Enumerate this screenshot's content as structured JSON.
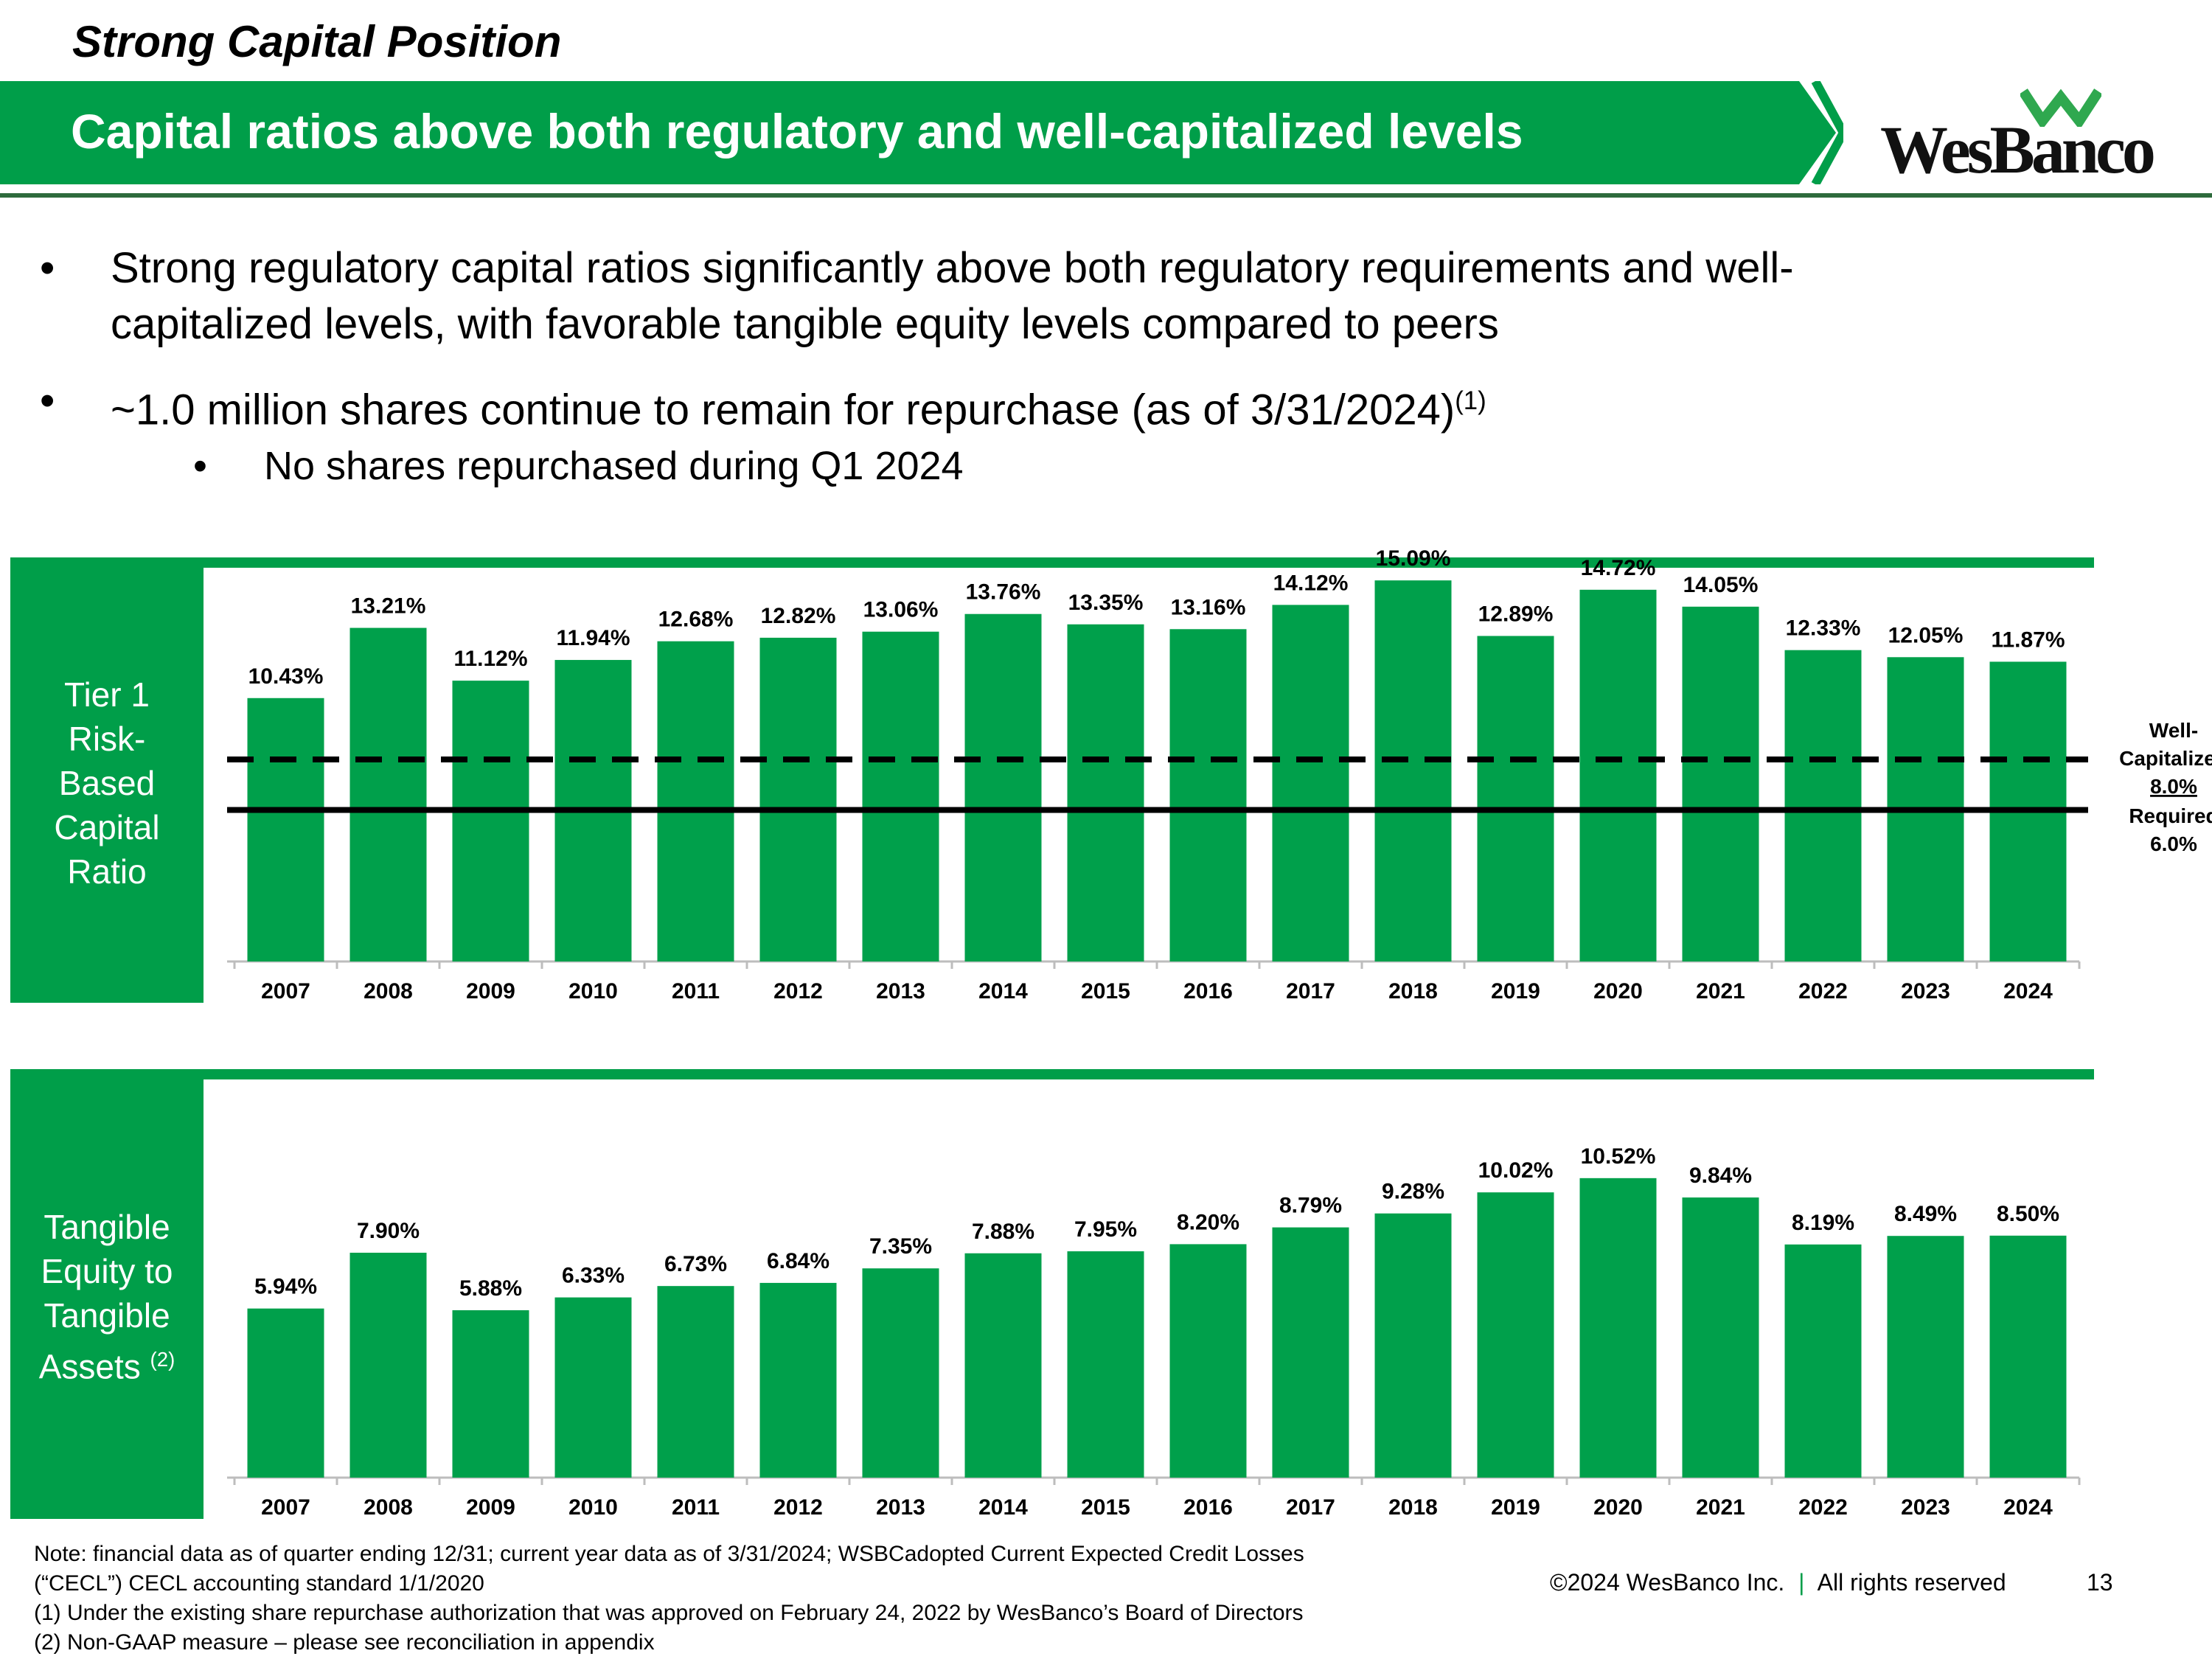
{
  "page": {
    "section_title": "Strong Capital Position",
    "banner_title": "Capital ratios above both regulatory and well-capitalized levels",
    "logo_text": "WesBanco",
    "colors": {
      "brand_green": "#009e49",
      "bar_green": "#00a04b",
      "dark_green": "#2e6b3c"
    }
  },
  "bullets": {
    "b1_line1": "Strong regulatory capital ratios significantly above both regulatory requirements and well-",
    "b1_line2": "capitalized levels, with favorable tangible equity levels compared to peers",
    "b2_text": "~1.0 million shares continue to remain for repurchase (as of 3/31/2024)",
    "b2_sup": "(1)",
    "b2_sub": "No shares repurchased during Q1 2024",
    "bullet_char": "•"
  },
  "chart1_label": {
    "l1": "Tier 1",
    "l2": "Risk-",
    "l3": "Based",
    "l4": "Capital",
    "l5": "Ratio"
  },
  "chart2_label": {
    "l1": "Tangible",
    "l2": "Equity to",
    "l3": "Tangible",
    "l4": "Assets",
    "sup": "(2)"
  },
  "chart_data": [
    {
      "type": "bar",
      "title": "Tier 1 Risk-Based Capital Ratio",
      "categories": [
        "2007",
        "2008",
        "2009",
        "2010",
        "2011",
        "2012",
        "2013",
        "2014",
        "2015",
        "2016",
        "2017",
        "2018",
        "2019",
        "2020",
        "2021",
        "2022",
        "2023",
        "2024"
      ],
      "values": [
        10.43,
        13.21,
        11.12,
        11.94,
        12.68,
        12.82,
        13.06,
        13.76,
        13.35,
        13.16,
        14.12,
        15.09,
        12.89,
        14.72,
        14.05,
        12.33,
        12.05,
        11.87
      ],
      "labels": [
        "10.43%",
        "13.21%",
        "11.12%",
        "11.94%",
        "12.68%",
        "12.82%",
        "13.06%",
        "13.76%",
        "13.35%",
        "13.16%",
        "14.12%",
        "15.09%",
        "12.89%",
        "14.72%",
        "14.05%",
        "12.33%",
        "12.05%",
        "11.87%"
      ],
      "ylim": [
        0,
        16
      ],
      "reference_lines": [
        {
          "name": "Well-Capitalized",
          "value": 8.0,
          "style": "dashed",
          "label_line1": "Well-",
          "label_line2": "Capitalized",
          "value_label": "8.0%"
        },
        {
          "name": "Required",
          "value": 6.0,
          "style": "solid",
          "label_line1": "Required",
          "value_label": "6.0%"
        }
      ]
    },
    {
      "type": "bar",
      "title": "Tangible Equity to Tangible Assets (2)",
      "categories": [
        "2007",
        "2008",
        "2009",
        "2010",
        "2011",
        "2012",
        "2013",
        "2014",
        "2015",
        "2016",
        "2017",
        "2018",
        "2019",
        "2020",
        "2021",
        "2022",
        "2023",
        "2024"
      ],
      "values": [
        5.94,
        7.9,
        5.88,
        6.33,
        6.73,
        6.84,
        7.35,
        7.88,
        7.95,
        8.2,
        8.79,
        9.28,
        10.02,
        10.52,
        9.84,
        8.19,
        8.49,
        8.5
      ],
      "labels": [
        "5.94%",
        "7.90%",
        "5.88%",
        "6.33%",
        "6.73%",
        "6.84%",
        "7.35%",
        "7.88%",
        "7.95%",
        "8.20%",
        "8.79%",
        "9.28%",
        "10.02%",
        "10.52%",
        "9.84%",
        "8.19%",
        "8.49%",
        "8.50%"
      ],
      "ylim": [
        0,
        11.5
      ]
    }
  ],
  "notes": {
    "line1": "Note: financial data as of quarter ending 12/31; current year data as of 3/31/2024; WSBCadopted Current Expected Credit Losses",
    "line2": "(“CECL”) CECL accounting standard 1/1/2020",
    "line3": "(1)   Under the existing share repurchase authorization that was approved on February 24, 2022 by WesBanco’s Board of Directors",
    "line4": "(2)   Non-GAAP measure – please see reconciliation in appendix"
  },
  "footer": {
    "copyright": "©2024 WesBanco Inc.",
    "separator": "|",
    "rights": "All rights reserved",
    "page_number": "13"
  }
}
